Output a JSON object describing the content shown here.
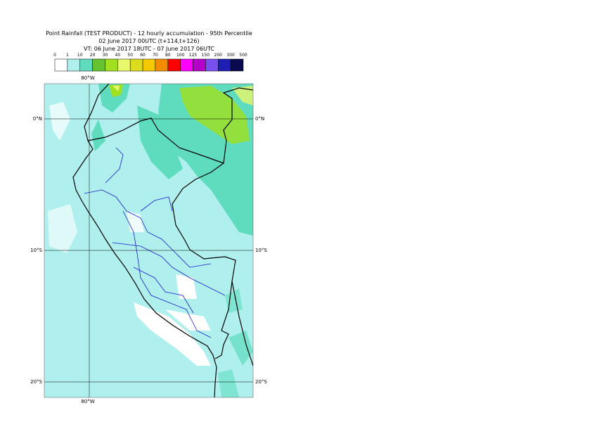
{
  "header": {
    "title": "Point Rainfall (TEST PRODUCT) - 12 hourly accumulation - 95th Percentile",
    "line2": "02 June 2017 00UTC (t+114,t+126)",
    "line3": "VT: 06 June 2017 18UTC - 07 June 2017 06UTC"
  },
  "legend": {
    "labels": [
      "0",
      "1",
      "10",
      "20",
      "30",
      "40",
      "50",
      "60",
      "70",
      "80",
      "100",
      "125",
      "150",
      "200",
      "300",
      "500"
    ],
    "colors": [
      "#ffffff",
      "#aff0ee",
      "#5fdcbe",
      "#66c22e",
      "#a0e01e",
      "#e8f86c",
      "#dcdc1e",
      "#f5c800",
      "#f58c00",
      "#ff0000",
      "#ff00ff",
      "#b400c8",
      "#7850f0",
      "#1e1eb4",
      "#0a0a50"
    ]
  },
  "map": {
    "lon_labels": [
      "80°W"
    ],
    "lat_labels": [
      "0°N",
      "10°S",
      "20°S"
    ]
  }
}
